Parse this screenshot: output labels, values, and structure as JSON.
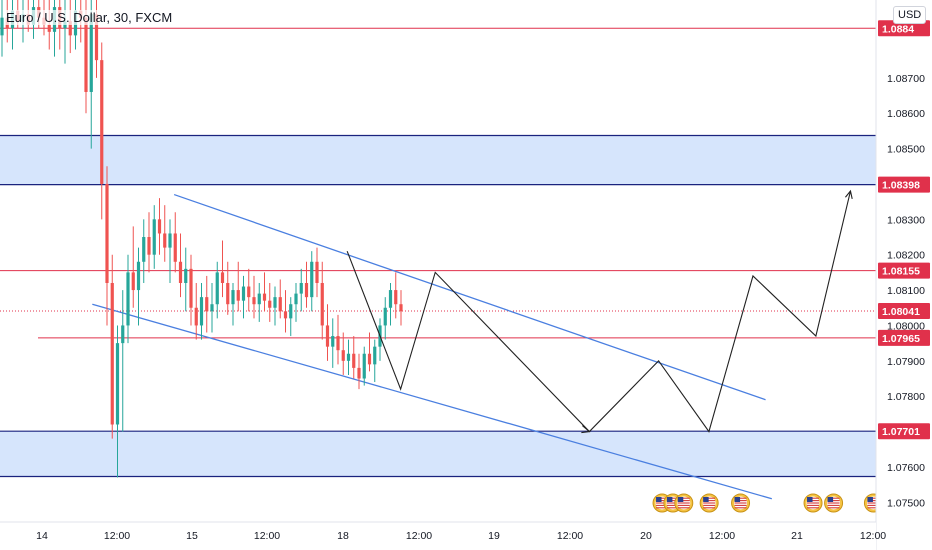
{
  "header": {
    "symbol_title": "Euro / U.S. Dollar, 30, FXCM",
    "currency_button": "USD"
  },
  "colors": {
    "up_candle": "#26a69a",
    "down_candle": "#ef5350",
    "zone_fill": "#cfe0fc",
    "zone_border": "#1a237e",
    "level_line": "#e0314b",
    "channel": "#4a7fe0",
    "projection": "#222222",
    "label_red": "#e0314b"
  },
  "chart_data": {
    "type": "candlestick",
    "instrument": "Euro / U.S. Dollar",
    "timeframe": "30",
    "source": "FXCM",
    "y_axis": {
      "ylim": [
        1.0745,
        1.0892
      ],
      "ticks": [
        "1.08700",
        "1.08600",
        "1.08500",
        "1.08300",
        "1.08200",
        "1.08100",
        "1.08000",
        "1.07900",
        "1.07800",
        "1.07600",
        "1.07500"
      ]
    },
    "x_axis": {
      "ticks": [
        "14",
        "12:00",
        "15",
        "12:00",
        "18",
        "12:00",
        "19",
        "12:00",
        "20",
        "12:00",
        "21",
        "12:00"
      ]
    },
    "price_labels": [
      {
        "text": "1.0884",
        "value": 1.0884
      },
      {
        "text": "1.08398",
        "value": 1.08398
      },
      {
        "text": "1.08155",
        "value": 1.08155
      },
      {
        "text": "1.08041",
        "value": 1.08041
      },
      {
        "text": "1.07965",
        "value": 1.07965
      },
      {
        "text": "1.07701",
        "value": 1.07701
      }
    ],
    "horizontal_levels": [
      1.0884,
      1.08155,
      1.07965
    ],
    "current_price": 1.08041,
    "zones": [
      {
        "from": 1.08398,
        "to": 1.08537
      },
      {
        "from": 1.07573,
        "to": 1.07701
      }
    ],
    "channel_lines": [
      {
        "points": [
          [
            "14 21:00",
            1.0837
          ],
          [
            "20 19:00",
            1.0779
          ]
        ]
      },
      {
        "points": [
          [
            "14 08:00",
            1.0806
          ],
          [
            "20 20:00",
            1.0751
          ]
        ]
      }
    ],
    "projection_path": [
      [
        "18 00:30",
        1.0821
      ],
      [
        "18 09:00",
        1.0782
      ],
      [
        "18 14:30",
        1.0815
      ],
      [
        "19 15:00",
        1.077
      ],
      [
        "20 02:00",
        1.079
      ],
      [
        "20 10:00",
        1.077
      ],
      [
        "20 17:00",
        1.0814
      ],
      [
        "21 03:00",
        1.0797
      ],
      [
        "21 08:30",
        1.0838
      ]
    ],
    "event_icons": [
      {
        "day_offset": 5.05,
        "kind": "us"
      },
      {
        "day_offset": 5.14,
        "kind": "us"
      },
      {
        "day_offset": 5.23,
        "kind": "us"
      },
      {
        "day_offset": 5.44,
        "kind": "us"
      },
      {
        "day_offset": 5.7,
        "kind": "us"
      },
      {
        "day_offset": 6.3,
        "kind": "us"
      },
      {
        "day_offset": 6.47,
        "kind": "us"
      },
      {
        "day_offset": 6.8,
        "kind": "us"
      },
      {
        "day_offset": 6.99,
        "kind": "us"
      },
      {
        "day_offset": 7.56,
        "kind": "eu"
      },
      {
        "day_offset": 7.65,
        "kind": "eu"
      },
      {
        "day_offset": 7.75,
        "kind": "us"
      },
      {
        "day_offset": 7.87,
        "kind": "us"
      },
      {
        "day_offset": 7.95,
        "kind": "us"
      },
      {
        "day_offset": 8.24,
        "kind": "us"
      },
      {
        "day_offset": 8.96,
        "kind": "eu"
      },
      {
        "day_offset": 9.07,
        "kind": "us"
      }
    ],
    "candles": [
      [
        1.0882,
        1.0892,
        1.0876,
        1.0887
      ],
      [
        1.0887,
        1.0892,
        1.088,
        1.0884
      ],
      [
        1.0884,
        1.0892,
        1.0878,
        1.0889
      ],
      [
        1.0889,
        1.0892,
        1.0884,
        1.0886
      ],
      [
        1.0886,
        1.0892,
        1.088,
        1.0888
      ],
      [
        1.0888,
        1.0892,
        1.0883,
        1.0885
      ],
      [
        1.0885,
        1.0892,
        1.0881,
        1.089
      ],
      [
        1.089,
        1.0892,
        1.0884,
        1.0887
      ],
      [
        1.0887,
        1.0892,
        1.0882,
        1.0885
      ],
      [
        1.0885,
        1.0892,
        1.0878,
        1.0883
      ],
      [
        1.0883,
        1.0892,
        1.0876,
        1.089
      ],
      [
        1.089,
        1.0892,
        1.0878,
        1.0884
      ],
      [
        1.0884,
        1.0892,
        1.0874,
        1.0886
      ],
      [
        1.0886,
        1.0892,
        1.0877,
        1.0882
      ],
      [
        1.0882,
        1.0892,
        1.0878,
        1.0889
      ],
      [
        1.0889,
        1.0892,
        1.088,
        1.0887
      ],
      [
        1.0887,
        1.0892,
        1.086,
        1.0866
      ],
      [
        1.0866,
        1.0892,
        1.085,
        1.0888
      ],
      [
        1.0888,
        1.0892,
        1.087,
        1.0875
      ],
      [
        1.0875,
        1.088,
        1.083,
        1.084
      ],
      [
        1.084,
        1.0845,
        1.08,
        1.0812
      ],
      [
        1.0812,
        1.082,
        1.0768,
        1.0772
      ],
      [
        1.0772,
        1.08,
        1.0757,
        1.0795
      ],
      [
        1.0795,
        1.081,
        1.077,
        1.08
      ],
      [
        1.08,
        1.082,
        1.0795,
        1.0815
      ],
      [
        1.0815,
        1.0828,
        1.0805,
        1.081
      ],
      [
        1.081,
        1.0822,
        1.08,
        1.0818
      ],
      [
        1.0818,
        1.083,
        1.0812,
        1.0825
      ],
      [
        1.0825,
        1.0832,
        1.0815,
        1.082
      ],
      [
        1.082,
        1.0834,
        1.0816,
        1.083
      ],
      [
        1.083,
        1.0836,
        1.082,
        1.0826
      ],
      [
        1.0826,
        1.0834,
        1.0818,
        1.0822
      ],
      [
        1.0822,
        1.083,
        1.0812,
        1.0826
      ],
      [
        1.0826,
        1.0832,
        1.0815,
        1.0818
      ],
      [
        1.0818,
        1.0826,
        1.0808,
        1.0812
      ],
      [
        1.0812,
        1.0822,
        1.0804,
        1.0816
      ],
      [
        1.0816,
        1.082,
        1.08,
        1.0805
      ],
      [
        1.0805,
        1.0812,
        1.0796,
        1.08
      ],
      [
        1.08,
        1.0812,
        1.0796,
        1.0808
      ],
      [
        1.0808,
        1.0814,
        1.0798,
        1.0804
      ],
      [
        1.0804,
        1.0812,
        1.0798,
        1.0806
      ],
      [
        1.0806,
        1.0818,
        1.0802,
        1.0815
      ],
      [
        1.0815,
        1.0824,
        1.0808,
        1.0812
      ],
      [
        1.0812,
        1.0818,
        1.0803,
        1.0806
      ],
      [
        1.0806,
        1.0812,
        1.08,
        1.081
      ],
      [
        1.081,
        1.0818,
        1.0804,
        1.0807
      ],
      [
        1.0807,
        1.0814,
        1.0802,
        1.0811
      ],
      [
        1.0811,
        1.0816,
        1.0804,
        1.0808
      ],
      [
        1.0808,
        1.0814,
        1.0802,
        1.0806
      ],
      [
        1.0806,
        1.0812,
        1.0801,
        1.0809
      ],
      [
        1.0809,
        1.0815,
        1.0804,
        1.0807
      ],
      [
        1.0807,
        1.0812,
        1.0801,
        1.0805
      ],
      [
        1.0805,
        1.0811,
        1.08,
        1.0808
      ],
      [
        1.0808,
        1.0813,
        1.0802,
        1.0804
      ],
      [
        1.0804,
        1.081,
        1.0798,
        1.0802
      ],
      [
        1.0802,
        1.0808,
        1.0797,
        1.0806
      ],
      [
        1.0806,
        1.0812,
        1.0801,
        1.0809
      ],
      [
        1.0809,
        1.0816,
        1.0804,
        1.0812
      ],
      [
        1.0812,
        1.0818,
        1.0805,
        1.0808
      ],
      [
        1.0808,
        1.0821,
        1.0804,
        1.0818
      ],
      [
        1.0818,
        1.0822,
        1.0808,
        1.0812
      ],
      [
        1.0812,
        1.0818,
        1.0796,
        1.08
      ],
      [
        1.08,
        1.0806,
        1.079,
        1.0794
      ],
      [
        1.0794,
        1.0802,
        1.0788,
        1.0797
      ],
      [
        1.0797,
        1.0803,
        1.0789,
        1.0793
      ],
      [
        1.0793,
        1.0798,
        1.0786,
        1.079
      ],
      [
        1.079,
        1.0796,
        1.0786,
        1.0792
      ],
      [
        1.0792,
        1.0797,
        1.0785,
        1.0788
      ],
      [
        1.0788,
        1.0792,
        1.0782,
        1.0785
      ],
      [
        1.0785,
        1.0794,
        1.0783,
        1.0792
      ],
      [
        1.0792,
        1.0798,
        1.0787,
        1.0789
      ],
      [
        1.0789,
        1.0796,
        1.0784,
        1.0794
      ],
      [
        1.0794,
        1.0802,
        1.079,
        1.08
      ],
      [
        1.08,
        1.0808,
        1.0796,
        1.0805
      ],
      [
        1.0805,
        1.0812,
        1.08,
        1.081
      ],
      [
        1.081,
        1.0815,
        1.0802,
        1.0806
      ],
      [
        1.0806,
        1.081,
        1.08,
        1.0804
      ]
    ]
  }
}
